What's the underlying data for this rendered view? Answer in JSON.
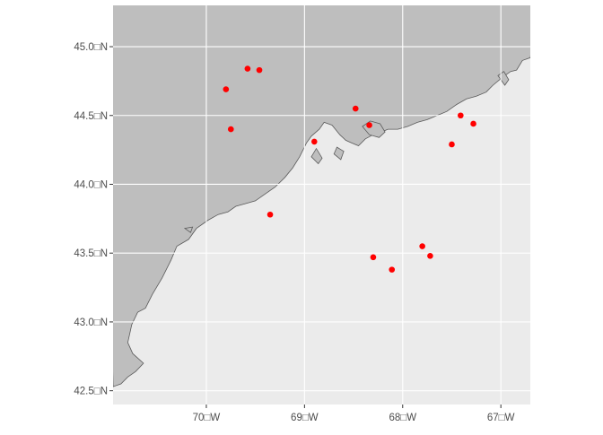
{
  "map": {
    "background_color": "#EBEBEB",
    "land_color": "#BEBEBE",
    "coast_stroke": "#5A5A5A",
    "gridline_color": "#FFFFFF",
    "point_color": "#FF0000",
    "lon_range": [
      -70.95,
      -66.7
    ],
    "lat_range": [
      42.4,
      45.3
    ],
    "x_ticks": [
      {
        "value": -70,
        "label": "70□W"
      },
      {
        "value": -69,
        "label": "69□W"
      },
      {
        "value": -68,
        "label": "68□W"
      },
      {
        "value": -67,
        "label": "67□W"
      }
    ],
    "y_ticks": [
      {
        "value": 45.0,
        "label": "45.0□N"
      },
      {
        "value": 44.5,
        "label": "44.5□N"
      },
      {
        "value": 44.0,
        "label": "44.0□N"
      },
      {
        "value": 43.5,
        "label": "43.5□N"
      },
      {
        "value": 43.0,
        "label": "43.0□N"
      },
      {
        "value": 42.5,
        "label": "42.5□N"
      }
    ],
    "points": [
      {
        "lon": -69.58,
        "lat": 44.84
      },
      {
        "lon": -69.46,
        "lat": 44.83
      },
      {
        "lon": -69.8,
        "lat": 44.69
      },
      {
        "lon": -69.75,
        "lat": 44.4
      },
      {
        "lon": -68.48,
        "lat": 44.55
      },
      {
        "lon": -68.34,
        "lat": 44.43
      },
      {
        "lon": -68.9,
        "lat": 44.31
      },
      {
        "lon": -67.41,
        "lat": 44.5
      },
      {
        "lon": -67.28,
        "lat": 44.44
      },
      {
        "lon": -67.5,
        "lat": 44.29
      },
      {
        "lon": -69.35,
        "lat": 43.78
      },
      {
        "lon": -67.8,
        "lat": 43.55
      },
      {
        "lon": -67.72,
        "lat": 43.48
      },
      {
        "lon": -68.3,
        "lat": 43.47
      },
      {
        "lon": -68.11,
        "lat": 43.38
      }
    ],
    "coastline": [
      [
        -70.95,
        42.53
      ],
      [
        -70.87,
        42.55
      ],
      [
        -70.8,
        42.6
      ],
      [
        -70.72,
        42.64
      ],
      [
        -70.64,
        42.7
      ],
      [
        -70.75,
        42.77
      ],
      [
        -70.8,
        42.85
      ],
      [
        -70.76,
        42.98
      ],
      [
        -70.7,
        43.07
      ],
      [
        -70.62,
        43.1
      ],
      [
        -70.55,
        43.2
      ],
      [
        -70.45,
        43.32
      ],
      [
        -70.36,
        43.45
      ],
      [
        -70.3,
        43.55
      ],
      [
        -70.18,
        43.6
      ],
      [
        -70.1,
        43.68
      ],
      [
        -69.98,
        43.74
      ],
      [
        -69.88,
        43.78
      ],
      [
        -69.78,
        43.8
      ],
      [
        -69.7,
        43.84
      ],
      [
        -69.6,
        43.86
      ],
      [
        -69.5,
        43.88
      ],
      [
        -69.4,
        43.93
      ],
      [
        -69.3,
        43.98
      ],
      [
        -69.2,
        44.05
      ],
      [
        -69.12,
        44.12
      ],
      [
        -69.05,
        44.2
      ],
      [
        -68.98,
        44.3
      ],
      [
        -68.93,
        44.35
      ],
      [
        -68.85,
        44.4
      ],
      [
        -68.8,
        44.45
      ],
      [
        -68.72,
        44.43
      ],
      [
        -68.64,
        44.36
      ],
      [
        -68.58,
        44.32
      ],
      [
        -68.52,
        44.3
      ],
      [
        -68.45,
        44.28
      ],
      [
        -68.38,
        44.33
      ],
      [
        -68.3,
        44.36
      ],
      [
        -68.22,
        44.38
      ],
      [
        -68.15,
        44.4
      ],
      [
        -68.05,
        44.4
      ],
      [
        -67.95,
        44.42
      ],
      [
        -67.85,
        44.45
      ],
      [
        -67.75,
        44.47
      ],
      [
        -67.65,
        44.5
      ],
      [
        -67.55,
        44.53
      ],
      [
        -67.45,
        44.58
      ],
      [
        -67.35,
        44.62
      ],
      [
        -67.25,
        44.64
      ],
      [
        -67.15,
        44.67
      ],
      [
        -67.08,
        44.72
      ],
      [
        -66.98,
        44.78
      ],
      [
        -66.9,
        44.82
      ],
      [
        -66.84,
        44.83
      ],
      [
        -66.78,
        44.9
      ],
      [
        -66.7,
        44.92
      ]
    ],
    "islands": [
      [
        [
          -68.41,
          44.42
        ],
        [
          -68.34,
          44.36
        ],
        [
          -68.24,
          44.34
        ],
        [
          -68.18,
          44.38
        ],
        [
          -68.23,
          44.44
        ],
        [
          -68.33,
          44.46
        ]
      ],
      [
        [
          -68.93,
          44.2
        ],
        [
          -68.86,
          44.15
        ],
        [
          -68.82,
          44.19
        ],
        [
          -68.88,
          44.26
        ]
      ],
      [
        [
          -68.7,
          44.22
        ],
        [
          -68.63,
          44.18
        ],
        [
          -68.6,
          44.24
        ],
        [
          -68.67,
          44.27
        ]
      ],
      [
        [
          -67.03,
          44.79
        ],
        [
          -66.96,
          44.72
        ],
        [
          -66.92,
          44.76
        ],
        [
          -66.97,
          44.82
        ]
      ],
      [
        [
          -70.22,
          43.68
        ],
        [
          -70.16,
          43.65
        ],
        [
          -70.14,
          43.69
        ]
      ]
    ]
  }
}
